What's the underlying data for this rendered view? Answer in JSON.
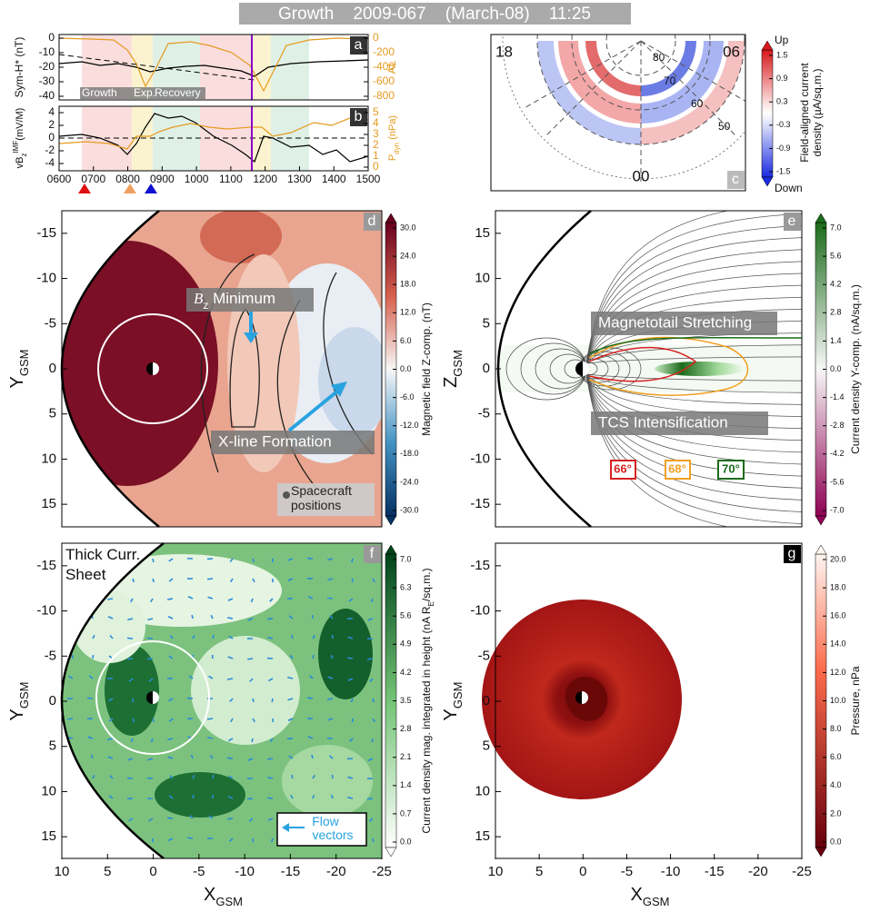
{
  "title": "Growth    2009-067    (March-08)    11:25",
  "time_ticks": [
    "0600",
    "0700",
    "0800",
    "0900",
    "1000",
    "1100",
    "1200",
    "1300",
    "1400",
    "1500"
  ],
  "panels": {
    "a": {
      "label": "a",
      "ylabel": "Sym-H* (nT)",
      "y2label": "AL",
      "yticks": [
        "0",
        "-10",
        "-20",
        "-30",
        "-40"
      ],
      "y2ticks": [
        "0",
        "-200",
        "-400",
        "-600",
        "-800"
      ],
      "phases": [
        "Growth",
        "Exp.",
        "Recovery"
      ]
    },
    "b": {
      "label": "b",
      "ylabel": {
        "main": "vB",
        "sub": "z",
        "sup": "IMF",
        "rest": "(mV/M)"
      },
      "y2label": {
        "main": "P",
        "sub": "dyn",
        "rest": " (nPa)"
      },
      "yticks": [
        "4",
        "2",
        "0",
        "-2",
        "-4"
      ],
      "y2ticks": [
        "5",
        "4",
        "3",
        "2",
        "1",
        "0"
      ]
    },
    "c": {
      "label": "c",
      "mlt": [
        "18",
        "06",
        "00"
      ],
      "lat": [
        "80",
        "70",
        "60",
        "50"
      ],
      "colorbar": {
        "label": [
          "Field-aligned current",
          "density (µA/sq.m.)"
        ],
        "top": "Up",
        "bottom": "Down",
        "ticks": [
          "1.5",
          "0.9",
          "0.3",
          "-0.3",
          "-0.9",
          "-1.5"
        ]
      }
    },
    "d": {
      "label": "d",
      "ylabel": {
        "main": "Y",
        "sub": "GSM"
      },
      "yticks": [
        "-15",
        "-10",
        "-5",
        "0",
        "5",
        "10",
        "15"
      ],
      "annotations": [
        {
          "main": "B",
          "sub": "z",
          "rest": " Minimum"
        },
        "X-line Formation"
      ],
      "legend": [
        "Spacecraft",
        "positions"
      ],
      "colorbar": {
        "label": "Magnetic field Z-comp. (nT)",
        "ticks": [
          "30.0",
          "24.0",
          "18.0",
          "12.0",
          "6.0",
          "0.0",
          "-6.0",
          "-12.0",
          "-18.0",
          "-24.0",
          "-30.0"
        ]
      }
    },
    "e": {
      "label": "e",
      "ylabel": {
        "main": "Z",
        "sub": "GSM"
      },
      "yticks": [
        "15",
        "10",
        "5",
        "0",
        "-5",
        "-10",
        "-15"
      ],
      "annotations": [
        "Magnetotail Stretching",
        "TCS Intensification"
      ],
      "contours": [
        "66°",
        "68°",
        "70°"
      ],
      "colorbar": {
        "label": "Current density Y-comp. (nA/sq.m.)",
        "ticks": [
          "7.0",
          "5.6",
          "4.2",
          "2.8",
          "1.4",
          "0.0",
          "-1.4",
          "-2.8",
          "-4.2",
          "-5.6",
          "-7.0"
        ]
      }
    },
    "f": {
      "label": "f",
      "ylabel": {
        "main": "Y",
        "sub": "GSM"
      },
      "yticks": [
        "-15",
        "-10",
        "-5",
        "0",
        "5",
        "10",
        "15"
      ],
      "xticks": [
        "10",
        "5",
        "0",
        "-5",
        "-10",
        "-15",
        "-20",
        "-25"
      ],
      "xlabel": {
        "main": "X",
        "sub": "GSM"
      },
      "annotations": [
        "Thick Curr.",
        "Sheet"
      ],
      "legend": [
        "Flow",
        "vectors"
      ],
      "colorbar": {
        "label": "Current density mag. integrated in height (nA R",
        "label_sub": "E",
        "label_rest": "/sq.m.)",
        "ticks": [
          "7.0",
          "6.3",
          "5.6",
          "4.9",
          "4.2",
          "3.5",
          "2.8",
          "2.1",
          "1.4",
          "0.7",
          "0.0"
        ]
      }
    },
    "g": {
      "label": "g",
      "ylabel": {
        "main": "Y",
        "sub": "GSM"
      },
      "yticks": [
        "-15",
        "-10",
        "-5",
        "0",
        "5",
        "10",
        "15"
      ],
      "xticks": [
        "10",
        "5",
        "0",
        "-5",
        "-10",
        "-15",
        "-20",
        "-25"
      ],
      "xlabel": {
        "main": "X",
        "sub": "GSM"
      },
      "colorbar": {
        "label": "Pressure, nPa",
        "ticks": [
          "20.0",
          "18.0",
          "16.0",
          "14.0",
          "12.0",
          "10.0",
          "8.0",
          "6.0",
          "4.0",
          "2.0",
          "0.0"
        ]
      }
    }
  }
}
